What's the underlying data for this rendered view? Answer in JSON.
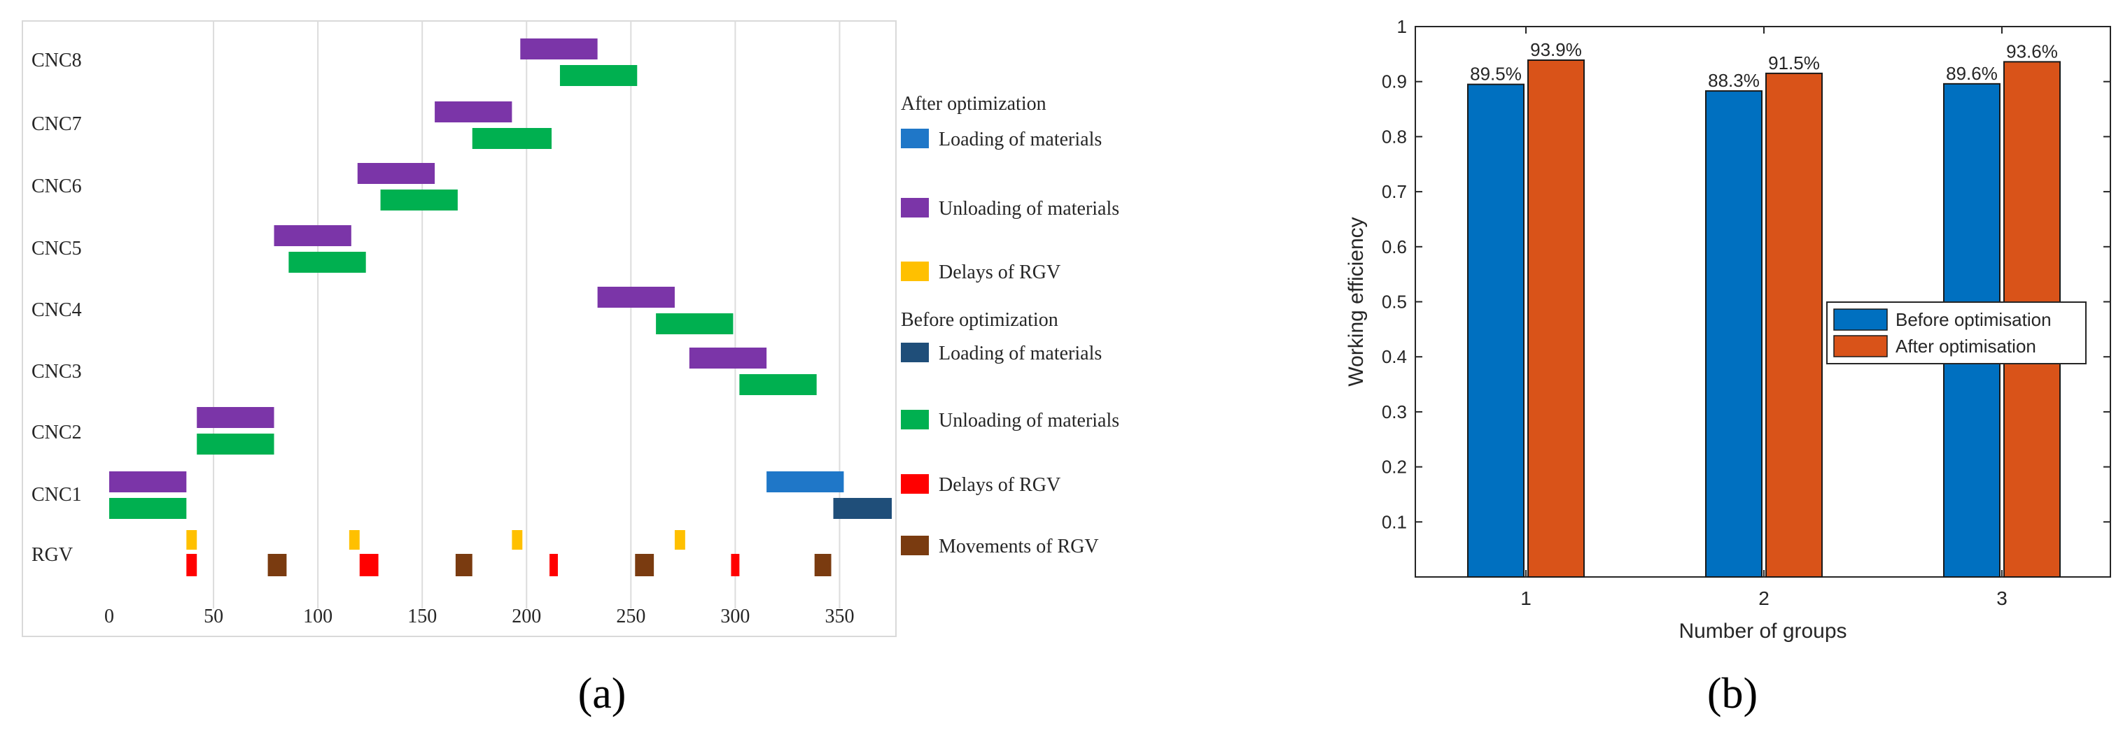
{
  "panel_labels": [
    "(a)",
    "(b)"
  ],
  "chart_data": [
    {
      "type": "gantt",
      "title": "",
      "xlabel": "",
      "ylabel": "",
      "xlim": [
        0,
        375
      ],
      "xticks": [
        0,
        50,
        100,
        150,
        200,
        250,
        300,
        350
      ],
      "grid": "vertical",
      "rows": [
        "RGV",
        "CNC1",
        "CNC2",
        "CNC3",
        "CNC4",
        "CNC5",
        "CNC6",
        "CNC7",
        "CNC8"
      ],
      "colors": {
        "after_loading": "#1F77C8",
        "after_unloading": "#7B35A8",
        "after_delay": "#FFC000",
        "before_loading": "#1F4E79",
        "before_unloading": "#00B050",
        "before_delay": "#FF0000",
        "movement": "#7A3B10"
      },
      "legend": {
        "placement": "right",
        "groups": [
          {
            "title": "After optimization",
            "entries": [
              {
                "label": "Loading of materials",
                "key": "after_loading"
              },
              {
                "label": "Unloading of materials",
                "key": "after_unloading"
              },
              {
                "label": "Delays of RGV",
                "key": "after_delay"
              }
            ]
          },
          {
            "title": "Before optimization",
            "entries": [
              {
                "label": "Loading of materials",
                "key": "before_loading"
              },
              {
                "label": "Unloading of materials",
                "key": "before_unloading"
              },
              {
                "label": "Delays of RGV",
                "key": "before_delay"
              },
              {
                "label": "Movements of RGV",
                "key": "movement"
              }
            ]
          }
        ]
      },
      "tasks": [
        {
          "row": "CNC8",
          "lane": "upper",
          "key": "after_unloading",
          "start": 197,
          "end": 234
        },
        {
          "row": "CNC8",
          "lane": "lower",
          "key": "before_unloading",
          "start": 216,
          "end": 253
        },
        {
          "row": "CNC7",
          "lane": "upper",
          "key": "after_unloading",
          "start": 156,
          "end": 193
        },
        {
          "row": "CNC7",
          "lane": "lower",
          "key": "before_unloading",
          "start": 174,
          "end": 212
        },
        {
          "row": "CNC6",
          "lane": "upper",
          "key": "after_unloading",
          "start": 119,
          "end": 156
        },
        {
          "row": "CNC6",
          "lane": "lower",
          "key": "before_unloading",
          "start": 130,
          "end": 167
        },
        {
          "row": "CNC5",
          "lane": "upper",
          "key": "after_unloading",
          "start": 79,
          "end": 116
        },
        {
          "row": "CNC5",
          "lane": "lower",
          "key": "before_unloading",
          "start": 86,
          "end": 123
        },
        {
          "row": "CNC4",
          "lane": "upper",
          "key": "after_unloading",
          "start": 234,
          "end": 271
        },
        {
          "row": "CNC4",
          "lane": "lower",
          "key": "before_unloading",
          "start": 262,
          "end": 299
        },
        {
          "row": "CNC3",
          "lane": "upper",
          "key": "after_unloading",
          "start": 278,
          "end": 315
        },
        {
          "row": "CNC3",
          "lane": "lower",
          "key": "before_unloading",
          "start": 302,
          "end": 339
        },
        {
          "row": "CNC2",
          "lane": "upper",
          "key": "after_unloading",
          "start": 42,
          "end": 79
        },
        {
          "row": "CNC2",
          "lane": "lower",
          "key": "before_unloading",
          "start": 42,
          "end": 79
        },
        {
          "row": "CNC1",
          "lane": "upper",
          "key": "after_unloading",
          "start": 0,
          "end": 37
        },
        {
          "row": "CNC1",
          "lane": "lower",
          "key": "before_unloading",
          "start": 0,
          "end": 37
        },
        {
          "row": "CNC1",
          "lane": "upper",
          "key": "after_loading",
          "start": 315,
          "end": 352
        },
        {
          "row": "CNC1",
          "lane": "lower",
          "key": "before_loading",
          "start": 347,
          "end": 375
        },
        {
          "row": "RGV",
          "lane": "upper",
          "key": "after_delay",
          "start": 37,
          "end": 42
        },
        {
          "row": "RGV",
          "lane": "upper",
          "key": "after_delay",
          "start": 115,
          "end": 120
        },
        {
          "row": "RGV",
          "lane": "upper",
          "key": "after_delay",
          "start": 193,
          "end": 198
        },
        {
          "row": "RGV",
          "lane": "upper",
          "key": "after_delay",
          "start": 271,
          "end": 276
        },
        {
          "row": "RGV",
          "lane": "lower",
          "key": "before_delay",
          "start": 37,
          "end": 42
        },
        {
          "row": "RGV",
          "lane": "lower",
          "key": "movement",
          "start": 76,
          "end": 85
        },
        {
          "row": "RGV",
          "lane": "lower",
          "key": "before_delay",
          "start": 120,
          "end": 129
        },
        {
          "row": "RGV",
          "lane": "lower",
          "key": "movement",
          "start": 166,
          "end": 174
        },
        {
          "row": "RGV",
          "lane": "lower",
          "key": "before_delay",
          "start": 211,
          "end": 215
        },
        {
          "row": "RGV",
          "lane": "lower",
          "key": "movement",
          "start": 252,
          "end": 261
        },
        {
          "row": "RGV",
          "lane": "lower",
          "key": "before_delay",
          "start": 298,
          "end": 302
        },
        {
          "row": "RGV",
          "lane": "lower",
          "key": "movement",
          "start": 338,
          "end": 346
        }
      ]
    },
    {
      "type": "bar",
      "title": "",
      "xlabel": "Number of groups",
      "ylabel": "Working efficiency",
      "categories": [
        "1",
        "2",
        "3"
      ],
      "ylim": [
        0,
        1
      ],
      "yticks": [
        "0.1",
        "0.2",
        "0.3",
        "0.4",
        "0.5",
        "0.6",
        "0.7",
        "0.8",
        "0.9",
        "1"
      ],
      "grid": "none",
      "legend_placement": "center-right",
      "series": [
        {
          "name": "Before optimisation",
          "color": "#0070C0",
          "values": [
            0.895,
            0.883,
            0.896
          ],
          "labels": [
            "89.5%",
            "88.3%",
            "89.6%"
          ]
        },
        {
          "name": "After optimisation",
          "color": "#D95319",
          "values": [
            0.939,
            0.915,
            0.936
          ],
          "labels": [
            "93.9%",
            "91.5%",
            "93.6%"
          ]
        }
      ]
    }
  ]
}
